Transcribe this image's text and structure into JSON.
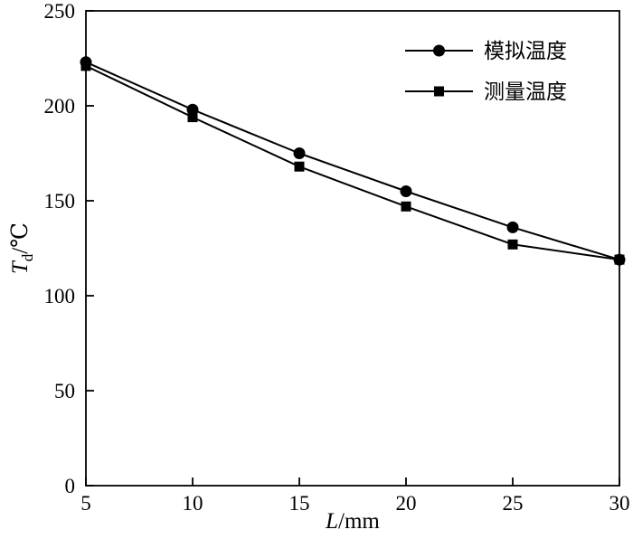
{
  "chart_data": {
    "type": "line",
    "x": [
      5,
      10,
      15,
      20,
      25,
      30
    ],
    "series": [
      {
        "name": "模拟温度",
        "marker": "circle",
        "values": [
          223,
          198,
          175,
          155,
          136,
          119
        ]
      },
      {
        "name": "测量温度",
        "marker": "square",
        "values": [
          221,
          194,
          168,
          147,
          127,
          119
        ]
      }
    ],
    "xlabel": {
      "var": "L",
      "rest": "/mm"
    },
    "ylabel": {
      "var": "T",
      "sub": "d",
      "rest": "/℃"
    },
    "xlim": [
      5,
      30
    ],
    "ylim": [
      0,
      250
    ],
    "xticks": [
      5,
      10,
      15,
      20,
      25,
      30
    ],
    "yticks": [
      0,
      50,
      100,
      150,
      200,
      250
    ],
    "grid": false,
    "legend_position": "top-right",
    "line_color": "#000000",
    "background_color": "#ffffff"
  }
}
